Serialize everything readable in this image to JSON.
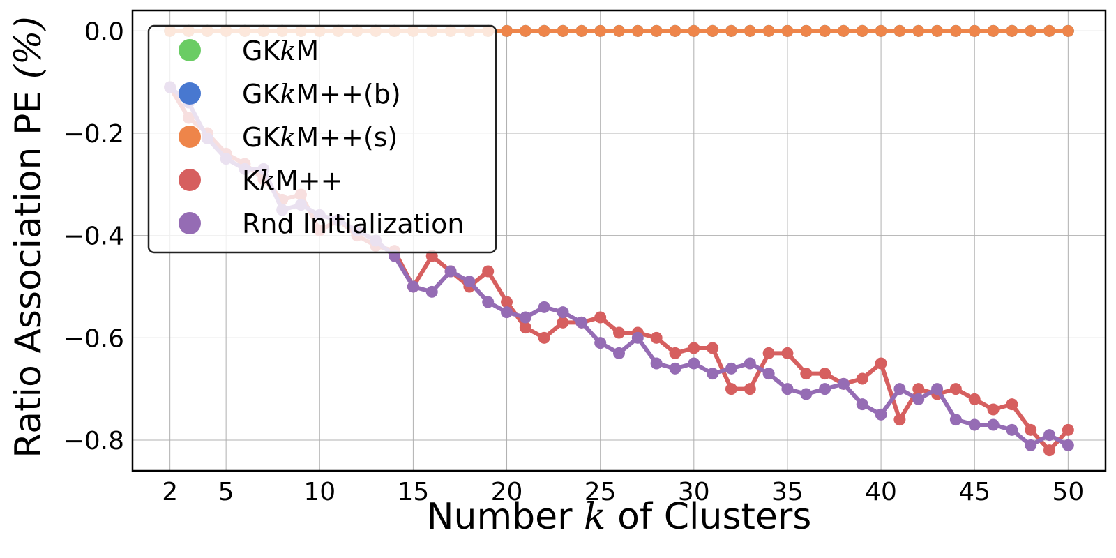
{
  "chart_data": {
    "type": "line",
    "xlabel": {
      "pre": "Number ",
      "var": "k",
      "post": " of Clusters"
    },
    "ylabel": {
      "main": "Ratio Association PE ",
      "unit": "(%)"
    },
    "xlim": [
      0,
      52
    ],
    "ylim": [
      -0.86,
      0.04
    ],
    "xticks": [
      2,
      5,
      10,
      15,
      20,
      25,
      30,
      35,
      40,
      45,
      50
    ],
    "yticks": [
      0.0,
      -0.2,
      -0.4,
      -0.6,
      -0.8
    ],
    "ytick_labels": [
      "0.0",
      "−0.2",
      "−0.4",
      "−0.6",
      "−0.8"
    ],
    "grid": true,
    "legend_position": "top-left",
    "x": [
      2,
      3,
      4,
      5,
      6,
      7,
      8,
      9,
      10,
      11,
      12,
      13,
      14,
      15,
      16,
      17,
      18,
      19,
      20,
      21,
      22,
      23,
      24,
      25,
      26,
      27,
      28,
      29,
      30,
      31,
      32,
      33,
      34,
      35,
      36,
      37,
      38,
      39,
      40,
      41,
      42,
      43,
      44,
      45,
      46,
      47,
      48,
      49,
      50
    ],
    "series": [
      {
        "name": {
          "pre": "GK",
          "var": "k",
          "post": "M"
        },
        "color": "#6acc64",
        "values": [
          0,
          0,
          0,
          0,
          0,
          0,
          0,
          0,
          0,
          0,
          0,
          0,
          0,
          0,
          0,
          0,
          0,
          0,
          0,
          0,
          0,
          0,
          0,
          0,
          0,
          0,
          0,
          0,
          0,
          0,
          0,
          0,
          0,
          0,
          0,
          0,
          0,
          0,
          0,
          0,
          0,
          0,
          0,
          0,
          0,
          0,
          0,
          0,
          0
        ]
      },
      {
        "name": {
          "pre": "GK",
          "var": "k",
          "post": "M++(b)"
        },
        "color": "#4878d0",
        "values": [
          0,
          0,
          0,
          0,
          0,
          0,
          0,
          0,
          0,
          0,
          0,
          0,
          0,
          0,
          0,
          0,
          0,
          0,
          0,
          0,
          0,
          0,
          0,
          0,
          0,
          0,
          0,
          0,
          0,
          0,
          0,
          0,
          0,
          0,
          0,
          0,
          0,
          0,
          0,
          0,
          0,
          0,
          0,
          0,
          0,
          0,
          0,
          0,
          0
        ]
      },
      {
        "name": {
          "pre": "GK",
          "var": "k",
          "post": "M++(s)"
        },
        "color": "#ee854a",
        "values": [
          0,
          0,
          0,
          0,
          0,
          0,
          0,
          0,
          0,
          0,
          0,
          0,
          0,
          0,
          0,
          0,
          0,
          0,
          0,
          0,
          0,
          0,
          0,
          0,
          0,
          0,
          0,
          0,
          0,
          0,
          0,
          0,
          0,
          0,
          0,
          0,
          0,
          0,
          0,
          0,
          0,
          0,
          0,
          0,
          0,
          0,
          0,
          0,
          0
        ]
      },
      {
        "name": {
          "pre": "K",
          "var": "k",
          "post": "M++"
        },
        "color": "#d65f5f",
        "values": [
          -0.11,
          -0.17,
          -0.2,
          -0.24,
          -0.26,
          -0.29,
          -0.33,
          -0.32,
          -0.39,
          -0.37,
          -0.4,
          -0.42,
          -0.43,
          -0.5,
          -0.44,
          -0.47,
          -0.5,
          -0.47,
          -0.53,
          -0.58,
          -0.6,
          -0.57,
          -0.57,
          -0.56,
          -0.59,
          -0.59,
          -0.6,
          -0.63,
          -0.62,
          -0.62,
          -0.7,
          -0.7,
          -0.63,
          -0.63,
          -0.67,
          -0.67,
          -0.69,
          -0.68,
          -0.65,
          -0.76,
          -0.7,
          -0.71,
          -0.7,
          -0.72,
          -0.74,
          -0.73,
          -0.78,
          -0.82,
          -0.78
        ]
      },
      {
        "name": {
          "pre": "Rnd Initialization",
          "var": "",
          "post": ""
        },
        "color": "#956cb4",
        "values": [
          -0.11,
          -0.14,
          -0.21,
          -0.25,
          -0.27,
          -0.27,
          -0.35,
          -0.34,
          -0.36,
          -0.37,
          -0.39,
          -0.41,
          -0.44,
          -0.5,
          -0.51,
          -0.47,
          -0.49,
          -0.53,
          -0.55,
          -0.56,
          -0.54,
          -0.55,
          -0.57,
          -0.61,
          -0.63,
          -0.6,
          -0.65,
          -0.66,
          -0.65,
          -0.67,
          -0.66,
          -0.65,
          -0.67,
          -0.7,
          -0.71,
          -0.7,
          -0.69,
          -0.73,
          -0.75,
          -0.7,
          -0.72,
          -0.7,
          -0.76,
          -0.77,
          -0.77,
          -0.78,
          -0.81,
          -0.79,
          -0.81
        ]
      }
    ]
  }
}
